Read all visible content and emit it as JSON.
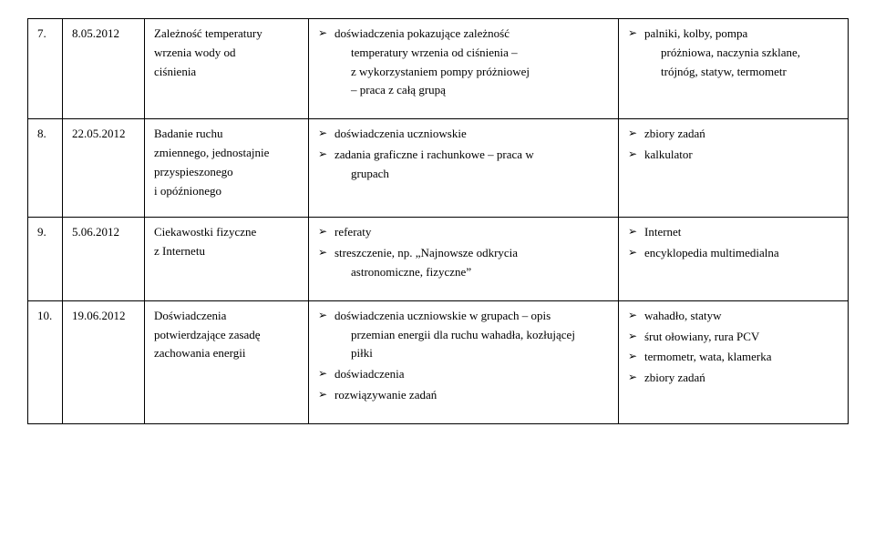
{
  "rows": [
    {
      "num": "7.",
      "date": "8.05.2012",
      "topic_lines": [
        "Zależność temperatury",
        "wrzenia wody od",
        "ciśnienia"
      ],
      "col4": [
        {
          "text": "doświadczenia pokazujące zależność",
          "sub": [
            "temperatury wrzenia od ciśnienia –",
            "z wykorzystaniem pompy próżniowej",
            "– praca z całą grupą"
          ]
        }
      ],
      "col5": [
        {
          "text": "palniki, kolby, pompa",
          "sub": [
            "próżniowa, naczynia szklane,",
            "trójnóg, statyw, termometr"
          ]
        }
      ]
    },
    {
      "num": "8.",
      "date": "22.05.2012",
      "topic_lines": [
        "Badanie ruchu",
        "zmiennego, jednostajnie",
        "przyspieszonego",
        "i opóźnionego"
      ],
      "col4": [
        {
          "text": "doświadczenia uczniowskie"
        },
        {
          "text": "zadania graficzne i rachunkowe – praca w",
          "sub": [
            "grupach"
          ]
        }
      ],
      "col5": [
        {
          "text": "zbiory zadań"
        },
        {
          "text": "kalkulator"
        }
      ]
    },
    {
      "num": "9.",
      "date": "5.06.2012",
      "topic_lines": [
        "Ciekawostki fizyczne",
        "z Internetu"
      ],
      "col4": [
        {
          "text": "referaty"
        },
        {
          "text": "streszczenie, np. „Najnowsze odkrycia",
          "sub": [
            "astronomiczne, fizyczne”"
          ]
        }
      ],
      "col5": [
        {
          "text": "Internet"
        },
        {
          "text": "encyklopedia multimedialna"
        }
      ]
    },
    {
      "num": "10.",
      "date": "19.06.2012",
      "topic_lines": [
        "Doświadczenia",
        "potwierdzające zasadę",
        "zachowania energii"
      ],
      "col4": [
        {
          "text": "doświadczenia uczniowskie w grupach – opis",
          "sub": [
            "przemian energii dla ruchu wahadła, kozłującej",
            "piłki"
          ]
        },
        {
          "text": "doświadczenia"
        },
        {
          "text": "rozwiązywanie zadań"
        }
      ],
      "col5": [
        {
          "text": "wahadło, statyw"
        },
        {
          "text": "śrut ołowiany, rura PCV"
        },
        {
          "text": "termometr, wata, klamerka"
        },
        {
          "text": "zbiory zadań"
        }
      ]
    }
  ]
}
